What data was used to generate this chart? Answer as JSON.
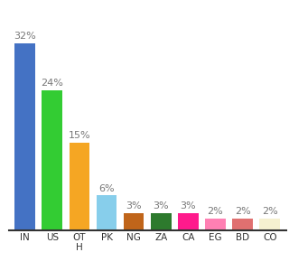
{
  "categories": [
    "IN",
    "US",
    "OT\nH",
    "PK",
    "NG",
    "ZA",
    "CA",
    "EG",
    "BD",
    "CO"
  ],
  "values": [
    32,
    24,
    15,
    6,
    3,
    3,
    3,
    2,
    2,
    2
  ],
  "labels": [
    "32%",
    "24%",
    "15%",
    "6%",
    "3%",
    "3%",
    "3%",
    "2%",
    "2%",
    "2%"
  ],
  "bar_colors": [
    "#4472c4",
    "#33cc33",
    "#f5a623",
    "#87ceeb",
    "#c0651a",
    "#2d7a2d",
    "#ff1a8c",
    "#ff80b3",
    "#e07070",
    "#f5f0d0"
  ],
  "ylim": [
    0,
    38
  ],
  "background_color": "#ffffff",
  "label_color": "#777777",
  "label_fontsize": 8.0,
  "tick_fontsize": 7.5
}
